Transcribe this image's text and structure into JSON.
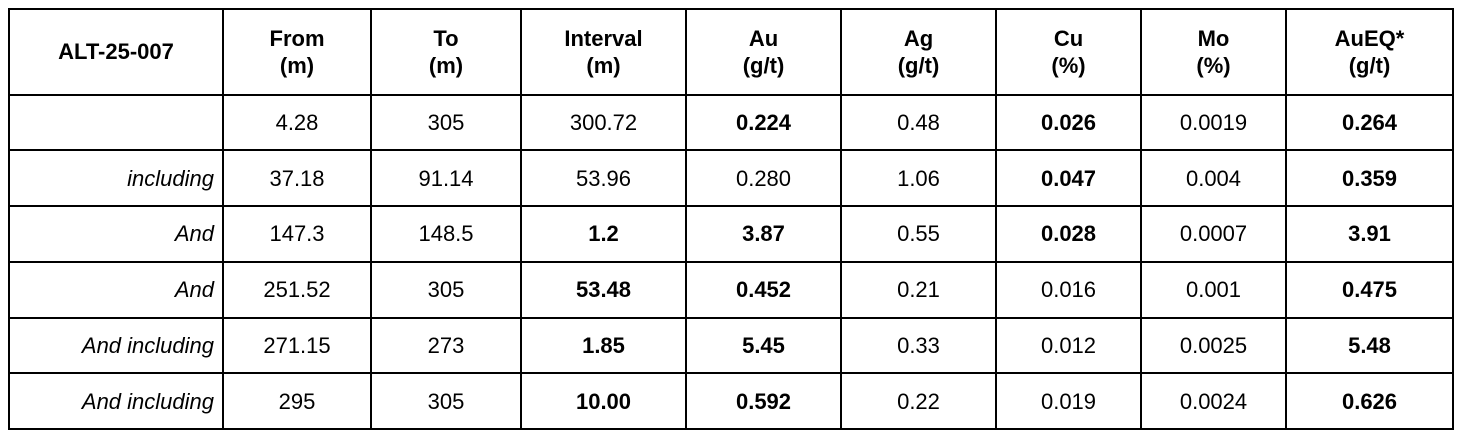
{
  "table": {
    "header": [
      "ALT-25-007",
      "From\n(m)",
      "To\n(m)",
      "Interval\n(m)",
      "Au\n(g/t)",
      "Ag\n(g/t)",
      "Cu\n(%)",
      "Mo\n(%)",
      "AuEQ*\n(g/t)"
    ],
    "rows": [
      [
        null,
        "4.28",
        "305",
        "300.72",
        "0.224",
        "0.48",
        "0.026",
        "0.0019",
        "0.264"
      ],
      [
        "including",
        "37.18",
        "91.14",
        "53.96",
        "0.280",
        "1.06",
        "0.047",
        "0.004",
        "0.359"
      ],
      [
        "And",
        "147.3",
        "148.5",
        "1.2",
        "3.87",
        "0.55",
        "0.028",
        "0.0007",
        "3.91"
      ],
      [
        "And",
        "251.52",
        "305",
        "53.48",
        "0.452",
        "0.21",
        "0.016",
        "0.001",
        "0.475"
      ],
      [
        "And including",
        "271.15",
        "273",
        "1.85",
        "5.45",
        "0.33",
        "0.012",
        "0.0025",
        "5.48"
      ],
      [
        "And including",
        "295",
        "305",
        "10.00",
        "0.592",
        "0.22",
        "0.019",
        "0.0024",
        "0.626"
      ]
    ]
  }
}
